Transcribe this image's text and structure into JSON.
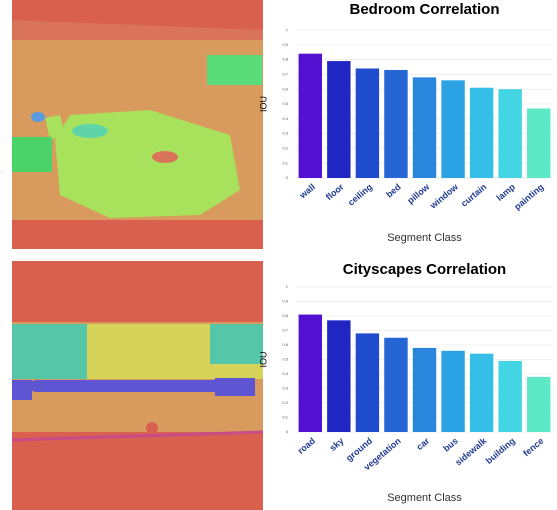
{
  "chart_data": [
    {
      "type": "bar",
      "title": "Bedroom Correlation",
      "x_label": "Segment Class",
      "y_label": "IOU",
      "categories": [
        "wall",
        "floor",
        "ceiling",
        "bed",
        "pillow",
        "window",
        "curtain",
        "lamp",
        "painting"
      ],
      "values": [
        0.84,
        0.79,
        0.74,
        0.73,
        0.68,
        0.66,
        0.61,
        0.6,
        0.47
      ],
      "colors": [
        "#5410d0",
        "#1f26c4",
        "#1f4ccc",
        "#2566d4",
        "#2a86dd",
        "#2ba2e3",
        "#36bde8",
        "#44d5e4",
        "#5de8c6"
      ],
      "ylim": [
        0,
        1
      ],
      "yticks": [
        0,
        0.1,
        0.2,
        0.3,
        0.4,
        0.5,
        0.6,
        0.7,
        0.8,
        0.9,
        1
      ],
      "grid": true
    },
    {
      "type": "bar",
      "title": "Cityscapes Correlation",
      "x_label": "Segment Class",
      "y_label": "IOU",
      "categories": [
        "road",
        "sky",
        "ground",
        "vegetation",
        "car",
        "bus",
        "sidewalk",
        "building",
        "fence"
      ],
      "values": [
        0.81,
        0.77,
        0.68,
        0.65,
        0.58,
        0.56,
        0.54,
        0.49,
        0.38
      ],
      "colors": [
        "#5410d0",
        "#1f26c4",
        "#1f4ccc",
        "#2566d4",
        "#2a86dd",
        "#2ba2e3",
        "#36bde8",
        "#44d5e4",
        "#5de8c6"
      ],
      "ylim": [
        0,
        1
      ],
      "yticks": [
        0,
        0.1,
        0.2,
        0.3,
        0.4,
        0.5,
        0.6,
        0.7,
        0.8,
        0.9,
        1
      ],
      "grid": true
    }
  ]
}
